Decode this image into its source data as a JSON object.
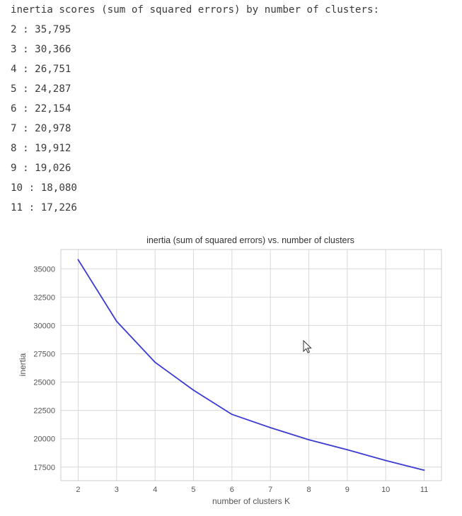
{
  "output": {
    "header": "inertia scores (sum of squared errors) by number of clusters:",
    "lines": [
      "2 : 35,795",
      "3 : 30,366",
      "4 : 26,751",
      "5 : 24,287",
      "6 : 22,154",
      "7 : 20,978",
      "8 : 19,912",
      "9 : 19,026",
      "10 : 18,080",
      "11 : 17,226"
    ]
  },
  "chart_data": {
    "type": "line",
    "title": "inertia (sum of squared errors) vs. number of clusters",
    "xlabel": "number of clusters K",
    "ylabel": "inertia",
    "x": [
      2,
      3,
      4,
      5,
      6,
      7,
      8,
      9,
      10,
      11
    ],
    "series": [
      {
        "values": [
          35795,
          30366,
          26751,
          24287,
          22154,
          20978,
          19912,
          19026,
          18080,
          17226
        ],
        "color": "#3b3bd1"
      }
    ],
    "xticks": [
      2,
      3,
      4,
      5,
      6,
      7,
      8,
      9,
      10,
      11
    ],
    "yticks": [
      17500,
      20000,
      22500,
      25000,
      27500,
      30000,
      32500,
      35000
    ],
    "xlim": [
      1.55,
      11.45
    ],
    "ylim": [
      16300,
      36700
    ],
    "grid": true,
    "grid_color": "#d9d9d9",
    "frame_color": "#cccccc",
    "text_color": "#555555"
  }
}
